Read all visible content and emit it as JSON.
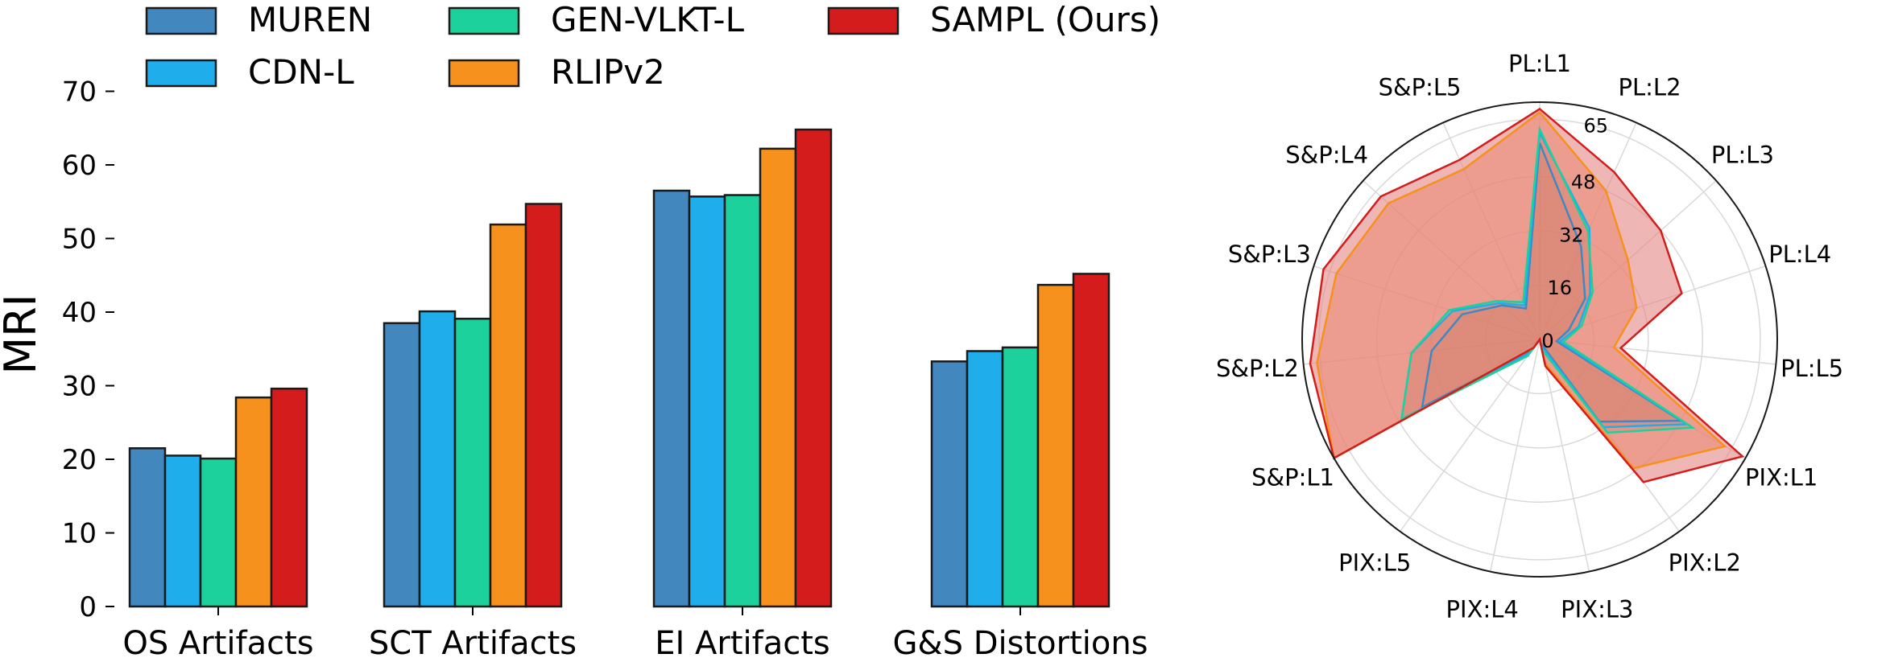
{
  "chart_data": [
    {
      "type": "bar",
      "ylabel": "MRI",
      "ylim": [
        0,
        75
      ],
      "yticks": [
        0,
        10,
        20,
        30,
        40,
        50,
        60,
        70
      ],
      "grid": false,
      "legend_position": "top",
      "categories": [
        "OS Artifacts",
        "SCT Artifacts",
        "EI Artifacts",
        "G&S Distortions"
      ],
      "series": [
        {
          "name": "MUREN",
          "color": "#4387bf",
          "values": [
            21.5,
            38.5,
            56.5,
            33.3
          ]
        },
        {
          "name": "CDN-L",
          "color": "#1fadeb",
          "values": [
            20.5,
            40.1,
            55.7,
            34.7
          ]
        },
        {
          "name": "GEN-VLKT-L",
          "color": "#1dd19c",
          "values": [
            20.1,
            39.1,
            55.9,
            35.2
          ]
        },
        {
          "name": "RLIPv2",
          "color": "#f5911c",
          "values": [
            28.4,
            51.9,
            62.2,
            43.7
          ]
        },
        {
          "name": "SAMPL (Ours)",
          "color": "#d41c1c",
          "values": [
            29.6,
            54.7,
            64.8,
            45.2
          ]
        }
      ]
    },
    {
      "type": "radar",
      "rmax": 70,
      "rticks": [
        0,
        16,
        32,
        48,
        65
      ],
      "grid": true,
      "axes": [
        "PL:L1",
        "PL:L2",
        "PL:L3",
        "PL:L4",
        "PL:L5",
        "PIX:L1",
        "PIX:L2",
        "PIX:L3",
        "PIX:L4",
        "PIX:L5",
        "S&P:L1",
        "S&P:L2",
        "S&P:L3",
        "S&P:L4",
        "S&P:L5"
      ],
      "series": [
        {
          "name": "MUREN",
          "color": "#4387bf",
          "fill": "#6e5a3c",
          "fill_opacity": 0.25,
          "values": [
            58,
            30,
            18,
            9,
            5,
            48,
            30,
            1,
            0,
            4,
            40,
            32,
            24,
            15,
            10
          ]
        },
        {
          "name": "CDN-L",
          "color": "#1fadeb",
          "fill": "#6e5a3c",
          "fill_opacity": 0.25,
          "values": [
            61,
            36,
            20,
            12,
            6,
            50,
            32,
            2,
            0,
            5,
            47,
            38,
            27,
            16,
            11
          ]
        },
        {
          "name": "GEN-VLKT-L",
          "color": "#1dd19c",
          "fill": "#6e5a3c",
          "fill_opacity": 0.25,
          "values": [
            62,
            35,
            21,
            13,
            7,
            52,
            34,
            3,
            0,
            6,
            47,
            38,
            28,
            17,
            12
          ]
        },
        {
          "name": "RLIPv2",
          "color": "#f5911c",
          "fill": "#f08c50",
          "fill_opacity": 0.55,
          "values": [
            67,
            48,
            35,
            30,
            22,
            63,
            47,
            7,
            0,
            3,
            70,
            66,
            63,
            60,
            55
          ]
        },
        {
          "name": "SAMPL (Ours)",
          "color": "#d41c1c",
          "fill": "#e58585",
          "fill_opacity": 0.6,
          "values": [
            68,
            54,
            48,
            44,
            24,
            69,
            52,
            8,
            0,
            3,
            70,
            68,
            67,
            63,
            58
          ]
        }
      ]
    }
  ]
}
